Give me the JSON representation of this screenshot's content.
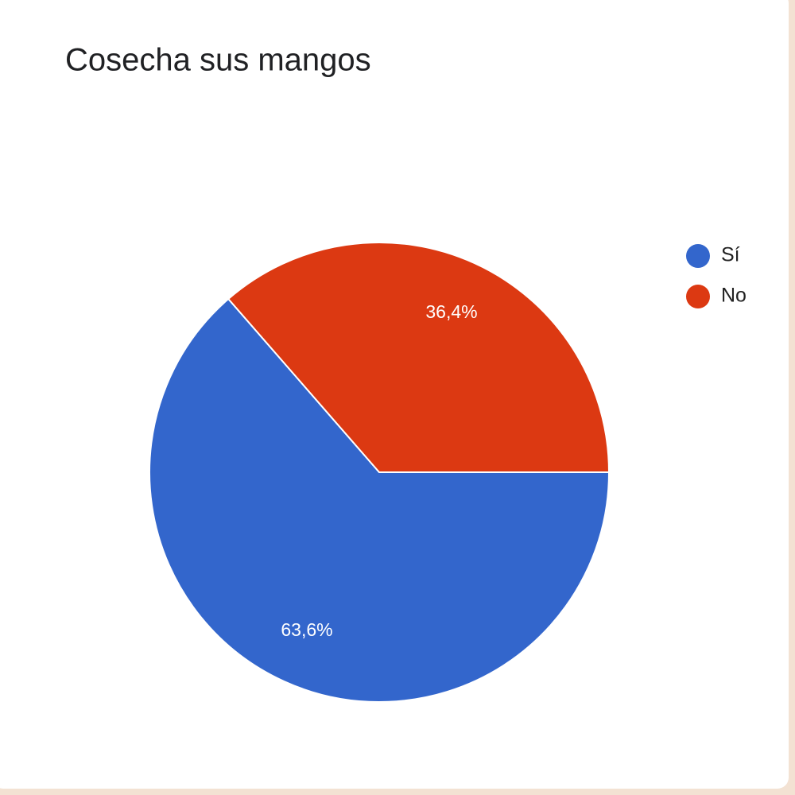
{
  "chart_data": {
    "type": "pie",
    "title": "Cosecha sus mangos",
    "categories": [
      "Sí",
      "No"
    ],
    "values": [
      63.6,
      36.4
    ],
    "value_labels": [
      "63,6%",
      "36,4%"
    ],
    "colors": [
      "#3366cc",
      "#dc3912"
    ],
    "legend": "right"
  }
}
